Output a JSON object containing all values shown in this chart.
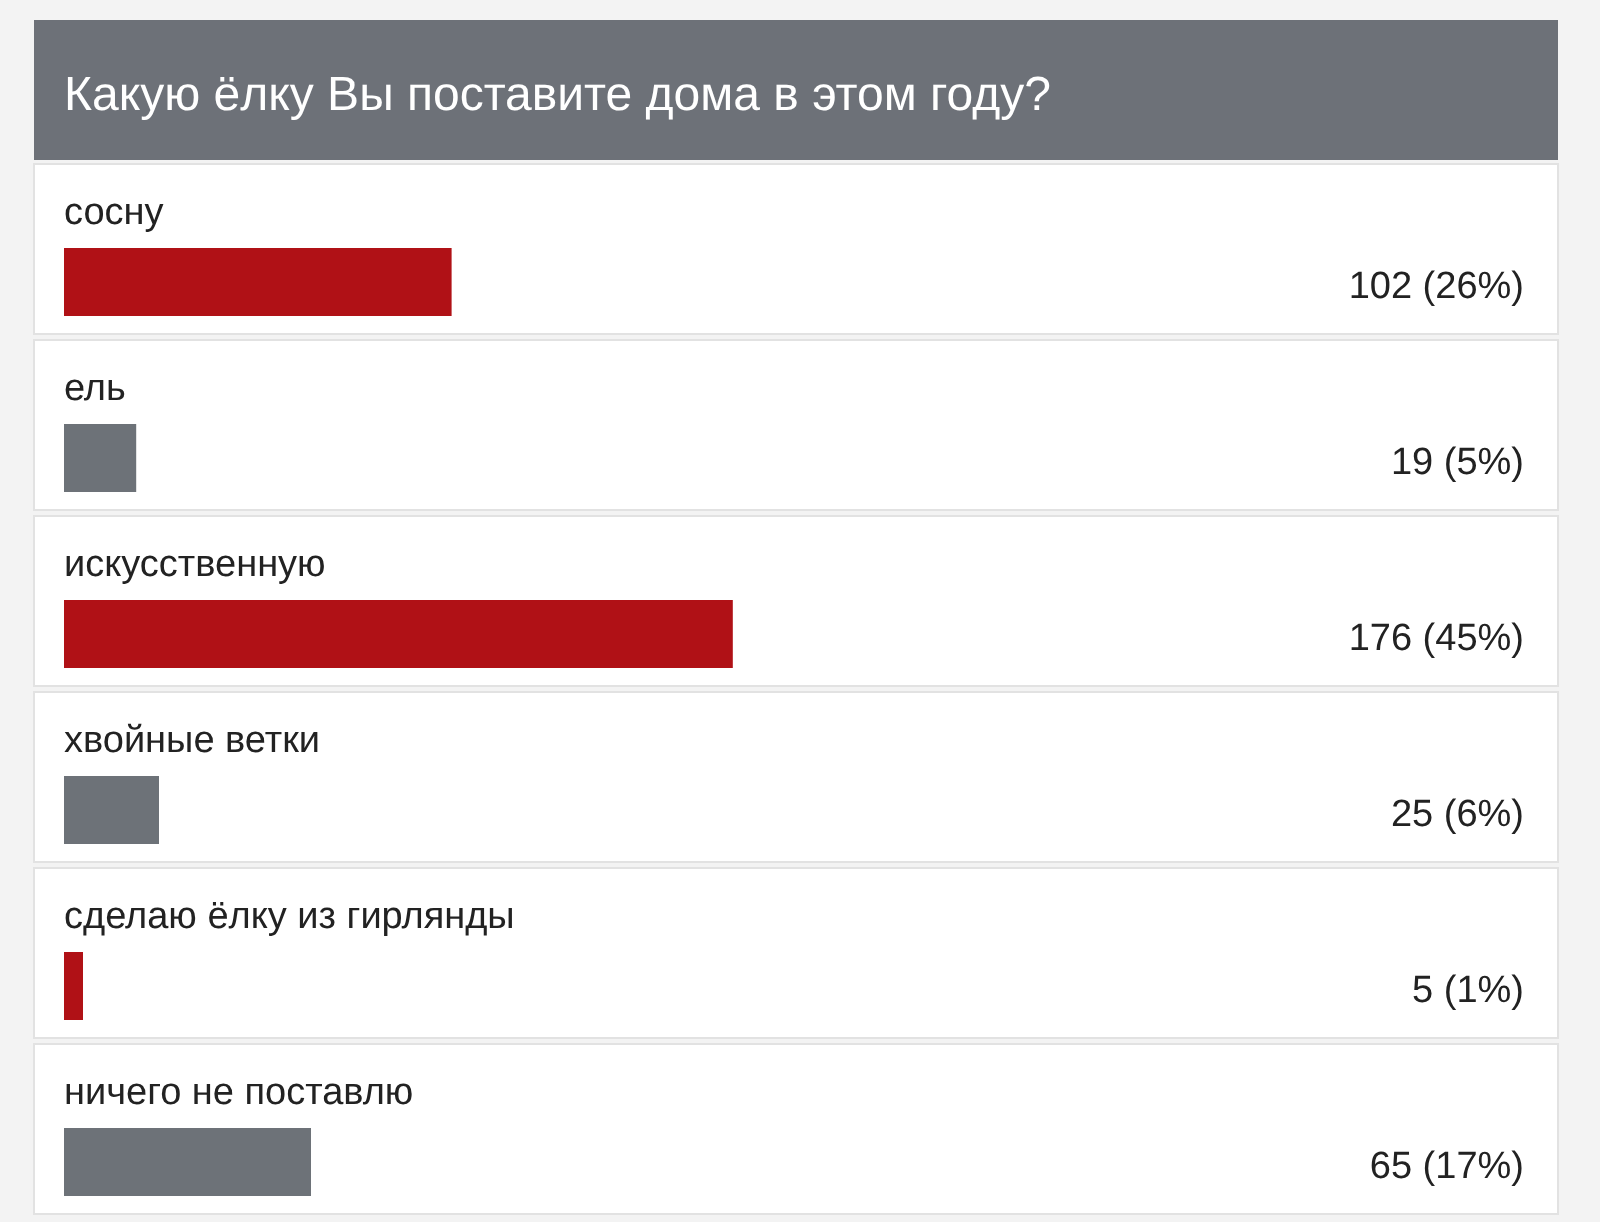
{
  "chart_data": {
    "type": "bar",
    "orientation": "horizontal",
    "title": "Какую ёлку Вы поставите дома в этом году?",
    "categories": [
      "сосну",
      "ель",
      "искусственную",
      "хвойные ветки",
      "сделаю ёлку из гирлянды",
      "ничего не поставлю"
    ],
    "values": [
      102,
      19,
      176,
      25,
      5,
      65
    ],
    "colors": [
      "#b01116",
      "#6d7278",
      "#b01116",
      "#6d7278",
      "#b01116",
      "#6d7278"
    ],
    "value_labels": [
      "102 (26%)",
      "19 (5%)",
      "176 (45%)",
      "25 (6%)",
      "5 (1%)",
      "65 (17%)"
    ]
  }
}
